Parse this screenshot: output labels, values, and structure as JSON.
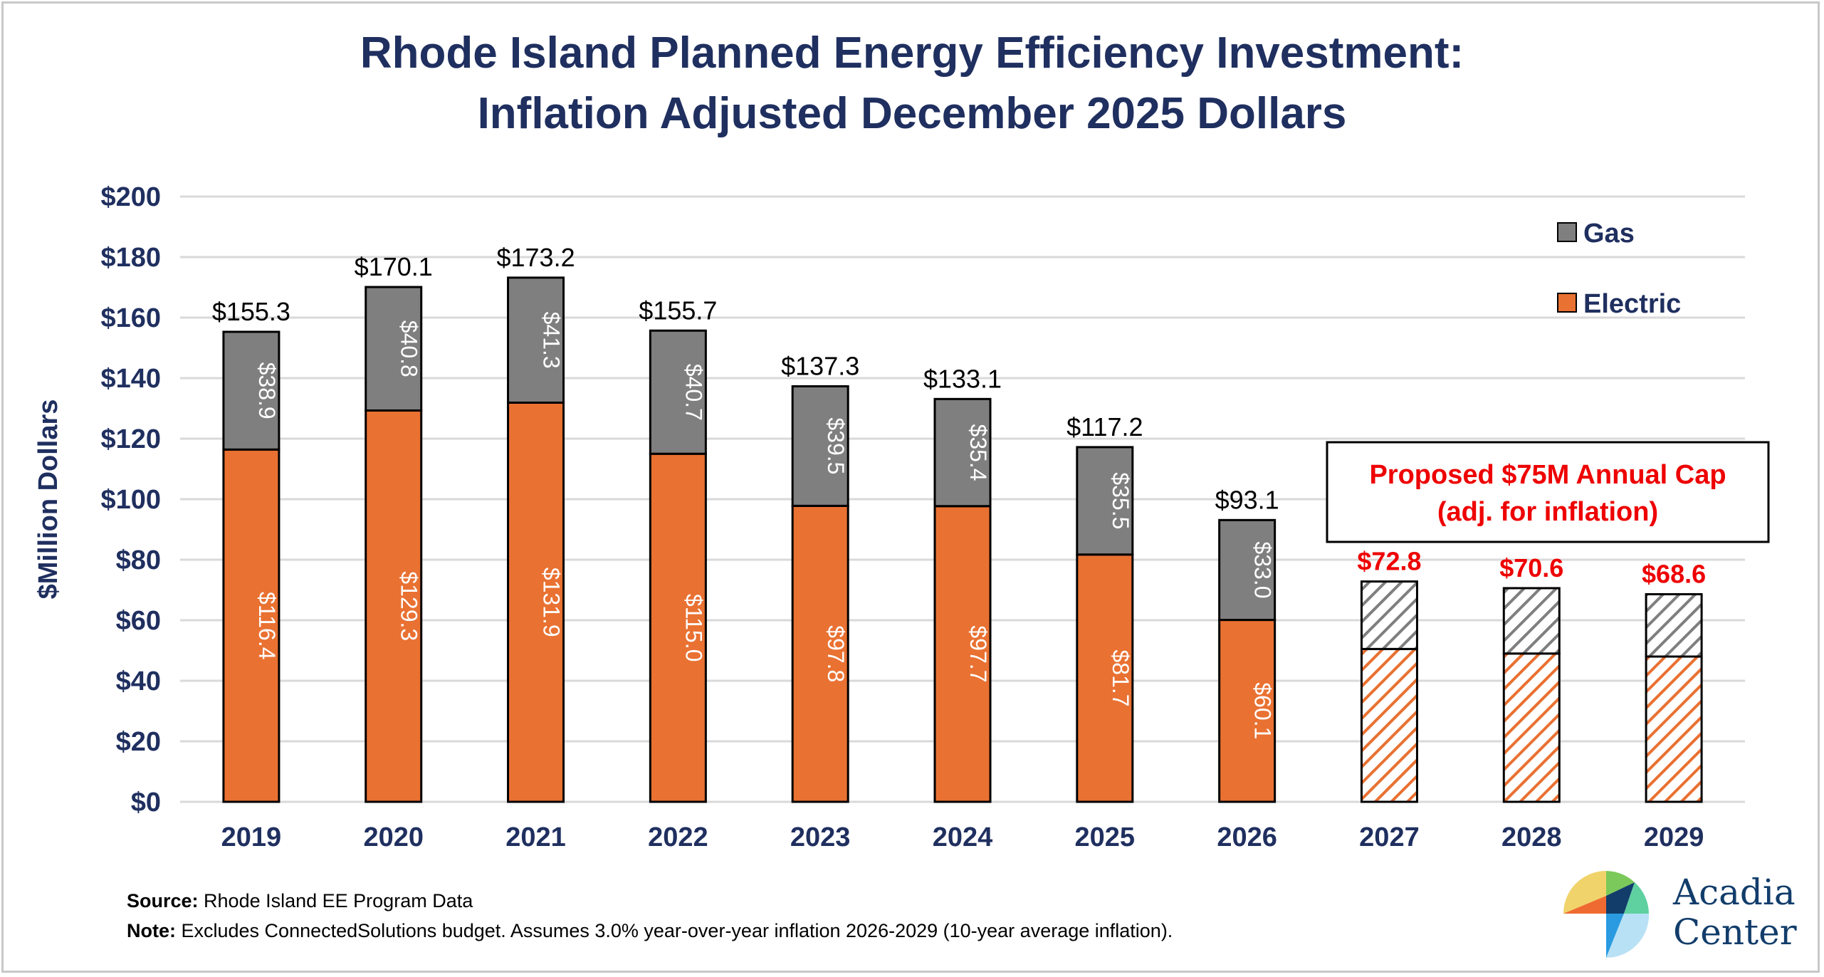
{
  "chart_data": {
    "type": "bar",
    "stacked": true,
    "title": [
      "Rhode Island Planned Energy Efficiency Investment:",
      "Inflation Adjusted December 2025 Dollars"
    ],
    "ylabel": "$Million Dollars",
    "xlabel": "",
    "ylim": [
      0,
      200
    ],
    "yticks": [
      "$0",
      "$20",
      "$40",
      "$60",
      "$80",
      "$100",
      "$120",
      "$140",
      "$160",
      "$180",
      "$200"
    ],
    "grid": true,
    "legend_position": "top-right",
    "categories": [
      "2019",
      "2020",
      "2021",
      "2022",
      "2023",
      "2024",
      "2025",
      "2026",
      "2027",
      "2028",
      "2029"
    ],
    "projected_from_index": 8,
    "series": [
      {
        "name": "Electric",
        "color": "#e97132",
        "values": [
          116.4,
          129.3,
          131.9,
          115.0,
          97.8,
          97.7,
          81.7,
          60.1,
          50.5,
          49.0,
          48.0
        ],
        "labels": [
          "$116.4",
          "$129.3",
          "$131.9",
          "$115.0",
          "$97.8",
          "$97.7",
          "$81.7",
          "$60.1",
          "",
          "",
          ""
        ]
      },
      {
        "name": "Gas",
        "color": "#7f7f7f",
        "values": [
          38.9,
          40.8,
          41.3,
          40.7,
          39.5,
          35.4,
          35.5,
          33.0,
          22.3,
          21.6,
          20.6
        ],
        "labels": [
          "$38.9",
          "$40.8",
          "$41.3",
          "$40.7",
          "$39.5",
          "$35.4",
          "$35.5",
          "$33.0",
          "",
          "",
          ""
        ]
      }
    ],
    "totals": [
      "$155.3",
      "$170.1",
      "$173.2",
      "$155.7",
      "$137.3",
      "$133.1",
      "$117.2",
      "$93.1",
      "$72.8",
      "$70.6",
      "$68.6"
    ],
    "total_values": [
      155.3,
      170.1,
      173.2,
      155.7,
      137.3,
      133.1,
      117.2,
      93.1,
      72.8,
      70.6,
      68.6
    ],
    "annotation": [
      "Proposed $75M Annual Cap",
      "(adj. for inflation)"
    ],
    "annotation_color": "#ee0000"
  },
  "footer": {
    "source_label": "Source:",
    "source_text": " Rhode Island EE Program Data",
    "note_label": "Note:",
    "note_text": " Excludes ConnectedSolutions budget. Assumes 3.0% year-over-year inflation 2026-2029 (10-year average inflation)."
  },
  "logo": {
    "line1": "Acadia",
    "line2": "Center"
  }
}
